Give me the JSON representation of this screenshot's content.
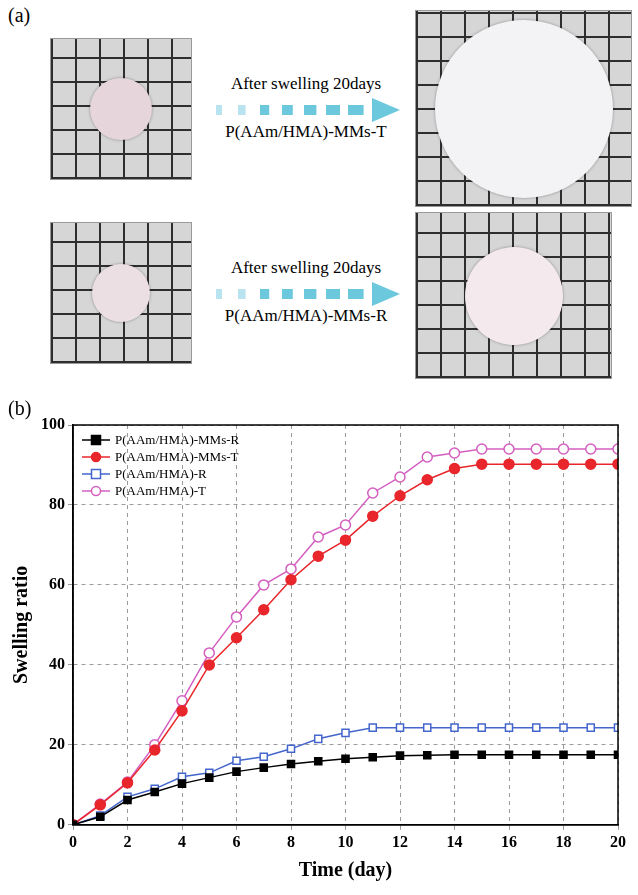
{
  "panel_a": {
    "label": "(a)",
    "rows": [
      {
        "arrow_text": "After swelling 20days",
        "sample": "P(AAm/HMA)-MMs-T"
      },
      {
        "arrow_text": "After swelling 20days",
        "sample": "P(AAm/HMA)-MMs-R"
      }
    ]
  },
  "chart_data": {
    "panel_label": "(b)",
    "type": "line",
    "x_label": "Time (day)",
    "y_label": "Swelling ratio",
    "x": [
      0,
      1,
      2,
      3,
      4,
      5,
      6,
      7,
      8,
      9,
      10,
      11,
      12,
      13,
      14,
      15,
      16,
      17,
      18,
      19,
      20
    ],
    "xlim": [
      0,
      20
    ],
    "xticks": [
      0,
      2,
      4,
      6,
      8,
      10,
      12,
      14,
      16,
      18,
      20
    ],
    "ylim": [
      0,
      100
    ],
    "yticks": [
      0,
      20,
      40,
      60,
      80,
      100
    ],
    "grid": true,
    "legend": "upper left",
    "series": [
      {
        "name": "P(AAm/HMA)-MMs-R",
        "color": "#000000",
        "marker": "square",
        "values": [
          0,
          2,
          6.2,
          8.2,
          10.3,
          11.8,
          13.3,
          14.3,
          15.2,
          15.9,
          16.5,
          16.9,
          17.3,
          17.4,
          17.5,
          17.5,
          17.5,
          17.5,
          17.5,
          17.5,
          17.5
        ]
      },
      {
        "name": "P(AAm/HMA)-MMs-T",
        "color": "#e8262b",
        "marker": "circle",
        "values": [
          0,
          5,
          10.5,
          18.7,
          28.5,
          40,
          46.8,
          53.8,
          61.3,
          67.2,
          71.2,
          77.2,
          82.3,
          86.3,
          89.1,
          90.2,
          90.2,
          90.2,
          90.2,
          90.2,
          90.2
        ]
      },
      {
        "name": "P(AAm/HMA)-R",
        "color": "#4466cc",
        "marker": "open_square",
        "values": [
          0,
          2.3,
          7,
          9,
          12,
          13,
          16,
          17,
          19,
          21.5,
          23,
          24.3,
          24.3,
          24.3,
          24.3,
          24.3,
          24.3,
          24.3,
          24.3,
          24.3,
          24.3
        ]
      },
      {
        "name": "P(AAm/HMA)-T",
        "color": "#d45fc0",
        "marker": "open_circle",
        "values": [
          0,
          5.2,
          10.7,
          20,
          31,
          43,
          52,
          60,
          64,
          72,
          75,
          83,
          87,
          92,
          93,
          94,
          94,
          94,
          94,
          94,
          94
        ]
      }
    ]
  }
}
